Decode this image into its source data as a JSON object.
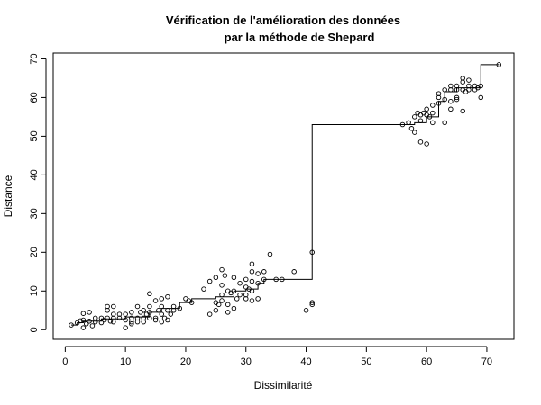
{
  "chart_data": {
    "type": "scatter",
    "title_line1": "Vérification de l'amélioration des données",
    "title_line2": "par la méthode de Shepard",
    "xlabel": "Dissimilarité",
    "ylabel": "Distance",
    "xlim": [
      -2,
      74.5
    ],
    "ylim": [
      -2.5,
      71.5
    ],
    "xticks": [
      0,
      10,
      20,
      30,
      40,
      50,
      60,
      70
    ],
    "yticks": [
      0,
      10,
      20,
      30,
      40,
      50,
      60,
      70
    ],
    "grid": false,
    "points": [
      [
        1,
        1.2
      ],
      [
        2,
        1.8
      ],
      [
        2.5,
        2.3
      ],
      [
        3,
        0.5
      ],
      [
        3,
        2.5
      ],
      [
        3,
        4.2
      ],
      [
        3.5,
        1.5
      ],
      [
        4,
        2.2
      ],
      [
        4,
        4.5
      ],
      [
        4.5,
        1
      ],
      [
        5,
        2
      ],
      [
        5,
        3
      ],
      [
        6,
        1.8
      ],
      [
        6,
        3
      ],
      [
        6.5,
        2.5
      ],
      [
        7,
        3
      ],
      [
        7,
        5
      ],
      [
        7,
        6
      ],
      [
        7.5,
        2.2
      ],
      [
        8,
        2
      ],
      [
        8,
        4
      ],
      [
        8,
        6
      ],
      [
        8,
        3
      ],
      [
        9,
        3
      ],
      [
        9,
        4
      ],
      [
        10,
        0.5
      ],
      [
        10,
        2.5
      ],
      [
        10,
        4
      ],
      [
        11,
        1.5
      ],
      [
        11,
        3
      ],
      [
        11,
        2
      ],
      [
        11,
        4.5
      ],
      [
        12,
        3
      ],
      [
        12,
        6
      ],
      [
        12,
        2
      ],
      [
        12.5,
        4.5
      ],
      [
        13,
        3
      ],
      [
        13,
        5
      ],
      [
        13,
        2
      ],
      [
        13.5,
        4
      ],
      [
        14,
        3
      ],
      [
        14,
        6
      ],
      [
        14,
        9.3
      ],
      [
        14,
        4.5
      ],
      [
        15,
        3
      ],
      [
        15,
        7.5
      ],
      [
        15,
        2.5
      ],
      [
        15.5,
        5
      ],
      [
        16,
        2
      ],
      [
        16,
        4
      ],
      [
        16,
        6
      ],
      [
        16,
        8
      ],
      [
        16.5,
        3
      ],
      [
        17,
        2.5
      ],
      [
        17,
        5
      ],
      [
        17,
        8.5
      ],
      [
        17.5,
        4
      ],
      [
        18,
        5
      ],
      [
        18,
        6
      ],
      [
        19,
        5.5
      ],
      [
        20,
        8
      ],
      [
        20.5,
        7.5
      ],
      [
        21,
        7
      ],
      [
        23,
        10.5
      ],
      [
        24,
        12.5
      ],
      [
        24,
        4
      ],
      [
        25,
        5
      ],
      [
        25,
        7
      ],
      [
        25,
        13.5
      ],
      [
        25.5,
        6.5
      ],
      [
        26,
        7.5
      ],
      [
        26,
        9
      ],
      [
        26,
        15.5
      ],
      [
        26,
        11.5
      ],
      [
        26.5,
        14
      ],
      [
        27,
        4.5
      ],
      [
        27,
        6.5
      ],
      [
        27,
        10
      ],
      [
        27.5,
        9.5
      ],
      [
        28,
        5.5
      ],
      [
        28,
        10
      ],
      [
        28,
        13.5
      ],
      [
        28.5,
        8
      ],
      [
        29,
        9
      ],
      [
        29,
        12
      ],
      [
        30,
        9
      ],
      [
        30,
        11
      ],
      [
        30,
        13
      ],
      [
        30,
        8
      ],
      [
        30.5,
        10.5
      ],
      [
        31,
        7.5
      ],
      [
        31,
        10
      ],
      [
        31,
        12.5
      ],
      [
        31,
        15
      ],
      [
        31,
        17
      ],
      [
        32,
        8
      ],
      [
        32,
        12
      ],
      [
        32,
        14.5
      ],
      [
        33,
        13
      ],
      [
        33,
        15
      ],
      [
        34,
        19.5
      ],
      [
        35,
        13
      ],
      [
        36,
        13
      ],
      [
        38,
        15
      ],
      [
        40,
        5
      ],
      [
        41,
        6.5
      ],
      [
        41,
        7
      ],
      [
        41,
        20
      ],
      [
        56,
        53
      ],
      [
        57,
        53.5
      ],
      [
        57.5,
        52
      ],
      [
        58,
        55
      ],
      [
        58,
        51
      ],
      [
        58.5,
        56
      ],
      [
        59,
        54
      ],
      [
        59,
        55.5
      ],
      [
        59,
        48.5
      ],
      [
        59.5,
        56
      ],
      [
        60,
        48
      ],
      [
        60,
        55.5
      ],
      [
        60,
        57
      ],
      [
        60.5,
        55
      ],
      [
        61,
        53.5
      ],
      [
        61,
        56
      ],
      [
        61,
        58
      ],
      [
        62,
        60
      ],
      [
        62,
        61
      ],
      [
        62,
        58.5
      ],
      [
        63,
        53.5
      ],
      [
        63,
        59.5
      ],
      [
        63,
        62
      ],
      [
        64,
        57
      ],
      [
        64,
        59
      ],
      [
        64,
        62
      ],
      [
        64,
        63
      ],
      [
        65,
        59.5
      ],
      [
        65,
        60
      ],
      [
        65,
        62
      ],
      [
        65,
        63
      ],
      [
        66,
        56.5
      ],
      [
        66,
        62
      ],
      [
        66,
        64
      ],
      [
        66,
        65
      ],
      [
        66.5,
        61.5
      ],
      [
        67,
        62
      ],
      [
        67,
        63
      ],
      [
        67,
        64.5
      ],
      [
        68,
        62
      ],
      [
        68,
        63
      ],
      [
        68.5,
        62.5
      ],
      [
        69,
        60
      ],
      [
        69,
        63
      ],
      [
        72,
        68.5
      ]
    ],
    "fit_step": [
      [
        1,
        1.2
      ],
      [
        2,
        1.8
      ],
      [
        3,
        2.2
      ],
      [
        6,
        2.8
      ],
      [
        10,
        3.3
      ],
      [
        14,
        4.5
      ],
      [
        16,
        5.5
      ],
      [
        19,
        7
      ],
      [
        21,
        8
      ],
      [
        25,
        8.5
      ],
      [
        28,
        10
      ],
      [
        30,
        10.5
      ],
      [
        32,
        12
      ],
      [
        33,
        13
      ],
      [
        41,
        53
      ],
      [
        58,
        53.5
      ],
      [
        60,
        55
      ],
      [
        62,
        59
      ],
      [
        63,
        61.5
      ],
      [
        65,
        62.5
      ],
      [
        69,
        68.5
      ],
      [
        72,
        68.5
      ]
    ]
  }
}
